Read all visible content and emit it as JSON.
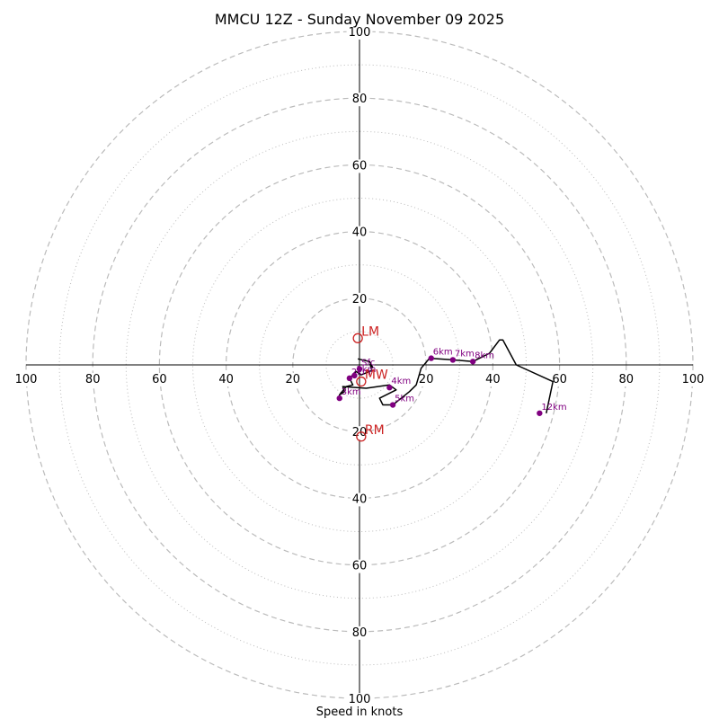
{
  "chart_data": {
    "type": "hodograph",
    "title": "MMCU 12Z - Sunday November 09 2025",
    "xlabel": "Speed in knots",
    "units": "knots",
    "range": [
      -100,
      100
    ],
    "rings_major": [
      20,
      40,
      60,
      80,
      100
    ],
    "rings_minor": [
      10,
      30,
      50,
      70,
      90
    ],
    "axis_ticks": [
      20,
      40,
      60,
      80,
      100
    ],
    "colors": {
      "trace": "#000000",
      "height_marker": "#800080",
      "motion": "#cc2222",
      "grid": "#bbbbbb"
    },
    "trace": [
      [
        -0.5,
        1.8
      ],
      [
        3,
        1
      ],
      [
        4,
        -0.8
      ],
      [
        3.2,
        0.2
      ],
      [
        3.7,
        -1.7
      ],
      [
        0.5,
        -3
      ],
      [
        -1,
        -2
      ],
      [
        -3,
        -4
      ],
      [
        -2,
        -6
      ],
      [
        -4,
        -6.5
      ],
      [
        -6,
        -9
      ],
      [
        -4.5,
        -8
      ],
      [
        -5,
        -6.5
      ],
      [
        2,
        -7
      ],
      [
        9,
        -6
      ],
      [
        11,
        -7.5
      ],
      [
        6,
        -10
      ],
      [
        7,
        -12
      ],
      [
        10,
        -12
      ],
      [
        12.5,
        -10
      ],
      [
        15,
        -8
      ],
      [
        17,
        -6
      ],
      [
        18.5,
        -1
      ],
      [
        21,
        2
      ],
      [
        28,
        1.5
      ],
      [
        34,
        1
      ],
      [
        39,
        3.5
      ],
      [
        42,
        7.5
      ],
      [
        43,
        7.5
      ],
      [
        47,
        0
      ],
      [
        58,
        -5
      ],
      [
        56,
        -14.5
      ]
    ],
    "height_markers": [
      {
        "label": "Sfc",
        "u": 0,
        "v": -1.2
      },
      {
        "label": "1km",
        "u": -1.5,
        "v": -3.2
      },
      {
        "label": "2km",
        "u": -3,
        "v": -4
      },
      {
        "label": "3km",
        "u": -6,
        "v": -10
      },
      {
        "label": "4km",
        "u": 9,
        "v": -6.8
      },
      {
        "label": "5km",
        "u": 10,
        "v": -12
      },
      {
        "label": "6km",
        "u": 21.5,
        "v": 2
      },
      {
        "label": "7km",
        "u": 28,
        "v": 1.5
      },
      {
        "label": "8km",
        "u": 34,
        "v": 1
      },
      {
        "label": "12km",
        "u": 54,
        "v": -14.5
      }
    ],
    "storm_motion": [
      {
        "label": "LM",
        "u": -0.5,
        "v": 8
      },
      {
        "label": "RM",
        "u": 0.5,
        "v": -21.5
      },
      {
        "label": "MW",
        "u": 0.5,
        "v": -5
      }
    ]
  }
}
